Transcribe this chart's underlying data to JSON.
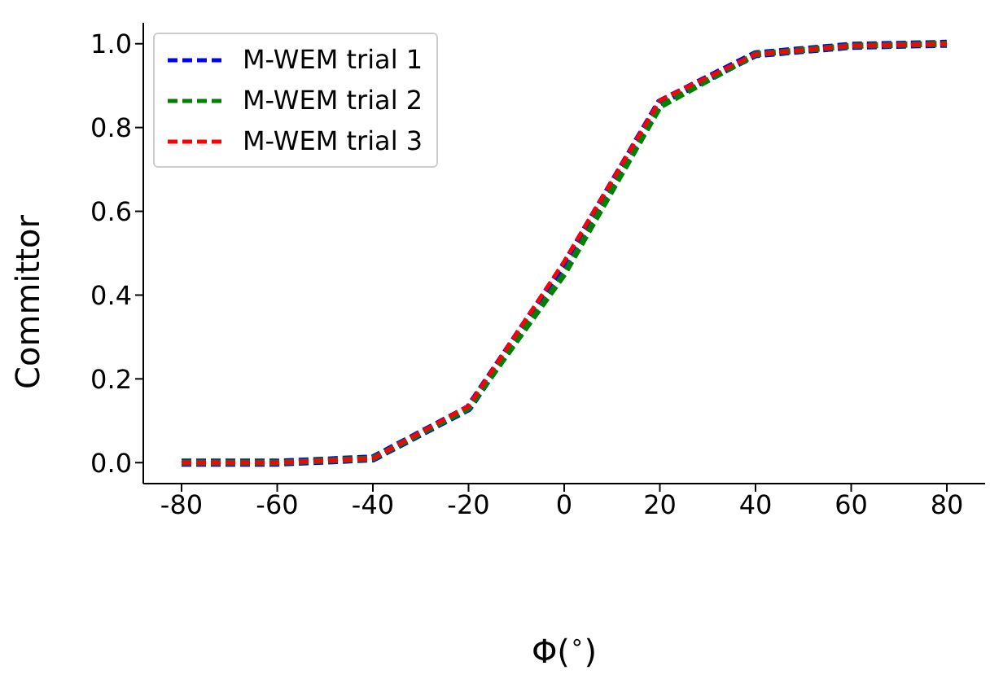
{
  "chart_data": {
    "type": "line",
    "xlabel": "Φ($^{∘}$)",
    "ylabel": "Committor",
    "x": [
      -80,
      -60,
      -40,
      -20,
      0,
      20,
      40,
      60,
      80
    ],
    "series": [
      {
        "name": "M-WEM trial 1",
        "color": "#0000ff",
        "values": [
          0,
          0,
          0.01,
          0.13,
          0.47,
          0.86,
          0.975,
          0.995,
          1.0
        ]
      },
      {
        "name": "M-WEM trial 2",
        "color": "#008000",
        "values": [
          0,
          0,
          0.01,
          0.13,
          0.45,
          0.85,
          0.975,
          0.995,
          1.0
        ]
      },
      {
        "name": "M-WEM trial 3",
        "color": "#ff0000",
        "values": [
          0,
          0,
          0.01,
          0.135,
          0.48,
          0.865,
          0.975,
          0.995,
          1.0
        ]
      }
    ],
    "xlim": [
      -88,
      88
    ],
    "xticks": [
      -80,
      -60,
      -40,
      -20,
      0,
      20,
      40,
      60,
      80
    ],
    "ylim": [
      -0.05,
      1.05
    ],
    "yticks": [
      {
        "value": 0,
        "label": "0.0"
      },
      {
        "value": 0.2,
        "label": "0.2"
      },
      {
        "value": 0.4,
        "label": "0.4"
      },
      {
        "value": 0.6,
        "label": "0.6"
      },
      {
        "value": 0.8,
        "label": "0.8"
      },
      {
        "value": 1,
        "label": "1.0"
      }
    ],
    "grid": false,
    "legend": "top left",
    "marker": "none",
    "line_style": "dashed"
  }
}
